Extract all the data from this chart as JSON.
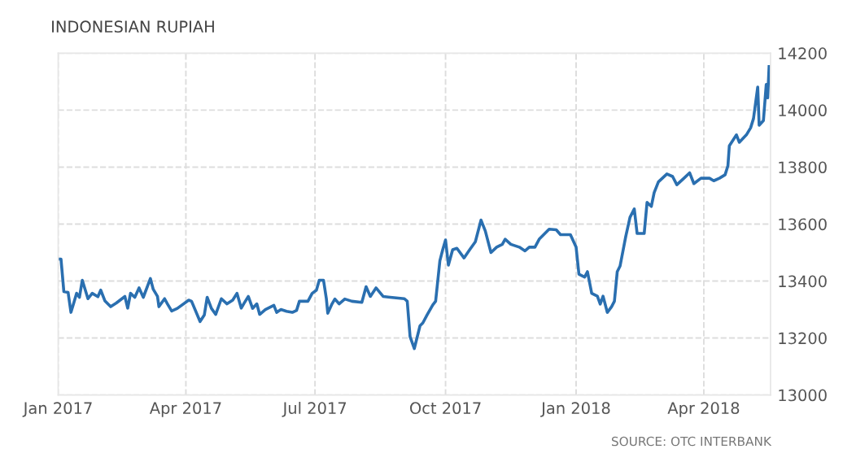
{
  "chart_data": {
    "type": "line",
    "title": "INDONESIAN RUPIAH",
    "annotations": [
      "SOURCE: OTC INTERBANK"
    ],
    "x": [
      "2017-01-02",
      "2017-01-03",
      "2017-01-05",
      "2017-01-08",
      "2017-01-10",
      "2017-01-12",
      "2017-01-14",
      "2017-01-16",
      "2017-01-18",
      "2017-01-22",
      "2017-01-25",
      "2017-01-29",
      "2017-01-31",
      "2017-02-03",
      "2017-02-07",
      "2017-02-11",
      "2017-02-17",
      "2017-02-19",
      "2017-02-21",
      "2017-02-24",
      "2017-02-27",
      "2017-03-02",
      "2017-03-07",
      "2017-03-09",
      "2017-03-12",
      "2017-03-13",
      "2017-03-17",
      "2017-03-19",
      "2017-03-22",
      "2017-03-26",
      "2017-04-03",
      "2017-04-05",
      "2017-04-11",
      "2017-04-14",
      "2017-04-16",
      "2017-04-19",
      "2017-04-22",
      "2017-04-26",
      "2017-04-30",
      "2017-05-04",
      "2017-05-07",
      "2017-05-10",
      "2017-05-12",
      "2017-05-15",
      "2017-05-18",
      "2017-05-21",
      "2017-05-23",
      "2017-05-27",
      "2017-06-02",
      "2017-06-04",
      "2017-06-07",
      "2017-06-11",
      "2017-06-15",
      "2017-06-18",
      "2017-06-20",
      "2017-06-26",
      "2017-06-29",
      "2017-07-02",
      "2017-07-04",
      "2017-07-07",
      "2017-07-09",
      "2017-07-10",
      "2017-07-13",
      "2017-07-15",
      "2017-07-18",
      "2017-07-22",
      "2017-07-27",
      "2017-08-03",
      "2017-08-06",
      "2017-08-09",
      "2017-08-13",
      "2017-08-18",
      "2017-08-23",
      "2017-09-02",
      "2017-09-04",
      "2017-09-06",
      "2017-09-09",
      "2017-09-13",
      "2017-09-15",
      "2017-09-18",
      "2017-09-22",
      "2017-09-24",
      "2017-09-27",
      "2017-09-29",
      "2017-10-01",
      "2017-10-03",
      "2017-10-06",
      "2017-10-09",
      "2017-10-14",
      "2017-10-18",
      "2017-10-22",
      "2017-10-26",
      "2017-10-29",
      "2017-11-02",
      "2017-11-06",
      "2017-11-10",
      "2017-11-12",
      "2017-11-16",
      "2017-11-22",
      "2017-11-26",
      "2017-11-29",
      "2017-12-03",
      "2017-12-06",
      "2017-12-13",
      "2017-12-18",
      "2017-12-21",
      "2017-12-28",
      "2018-01-01",
      "2018-01-03",
      "2018-01-07",
      "2018-01-09",
      "2018-01-12",
      "2018-01-16",
      "2018-01-18",
      "2018-01-20",
      "2018-01-23",
      "2018-01-26",
      "2018-01-28",
      "2018-01-30",
      "2018-02-01",
      "2018-02-05",
      "2018-02-08",
      "2018-02-11",
      "2018-02-13",
      "2018-02-18",
      "2018-02-20",
      "2018-02-23",
      "2018-02-25",
      "2018-02-28",
      "2018-03-06",
      "2018-03-10",
      "2018-03-13",
      "2018-03-18",
      "2018-03-22",
      "2018-03-25",
      "2018-03-30",
      "2018-04-05",
      "2018-04-08",
      "2018-04-12",
      "2018-04-16",
      "2018-04-18",
      "2018-04-19",
      "2018-04-24",
      "2018-04-26",
      "2018-05-01",
      "2018-05-04",
      "2018-05-06",
      "2018-05-09",
      "2018-05-10",
      "2018-05-13",
      "2018-05-15",
      "2018-05-16",
      "2018-05-17"
    ],
    "series": [
      {
        "color": "#2a6fb0",
        "values": [
          13477,
          13477,
          13363,
          13360,
          13290,
          13323,
          13357,
          13343,
          13403,
          13338,
          13357,
          13345,
          13368,
          13330,
          13310,
          13323,
          13346,
          13305,
          13357,
          13343,
          13376,
          13343,
          13409,
          13371,
          13346,
          13310,
          13338,
          13320,
          13295,
          13304,
          13333,
          13329,
          13258,
          13281,
          13343,
          13304,
          13283,
          13338,
          13320,
          13333,
          13357,
          13305,
          13322,
          13346,
          13304,
          13320,
          13283,
          13300,
          13315,
          13290,
          13300,
          13294,
          13290,
          13297,
          13329,
          13329,
          13357,
          13368,
          13403,
          13403,
          13338,
          13287,
          13320,
          13337,
          13320,
          13337,
          13329,
          13325,
          13380,
          13346,
          13376,
          13346,
          13343,
          13338,
          13329,
          13205,
          13163,
          13243,
          13253,
          13281,
          13316,
          13329,
          13471,
          13510,
          13544,
          13456,
          13510,
          13515,
          13481,
          13510,
          13538,
          13614,
          13576,
          13500,
          13519,
          13529,
          13547,
          13529,
          13519,
          13506,
          13519,
          13519,
          13547,
          13582,
          13580,
          13563,
          13563,
          13519,
          13424,
          13414,
          13433,
          13357,
          13347,
          13319,
          13347,
          13290,
          13310,
          13329,
          13433,
          13453,
          13557,
          13624,
          13653,
          13567,
          13567,
          13676,
          13662,
          13710,
          13748,
          13776,
          13767,
          13738,
          13761,
          13780,
          13742,
          13761,
          13761,
          13752,
          13761,
          13773,
          13805,
          13875,
          13913,
          13887,
          13913,
          13938,
          13970,
          14081,
          13947,
          13963,
          14090,
          14043,
          14153
        ]
      }
    ],
    "xlim": [
      "2017-01-01",
      "2018-05-18"
    ],
    "xticks": [
      {
        "value": "2017-01-01",
        "label": "Jan 2017"
      },
      {
        "value": "2017-04-01",
        "label": "Apr 2017"
      },
      {
        "value": "2017-07-01",
        "label": "Jul 2017"
      },
      {
        "value": "2017-10-01",
        "label": "Oct 2017"
      },
      {
        "value": "2018-01-01",
        "label": "Jan 2018"
      },
      {
        "value": "2018-04-01",
        "label": "Apr 2018"
      }
    ],
    "ylim": [
      13000,
      14200
    ],
    "yticks": [
      13000,
      13200,
      13400,
      13600,
      13800,
      14000,
      14200
    ],
    "grid": true,
    "line_style": "solid"
  }
}
